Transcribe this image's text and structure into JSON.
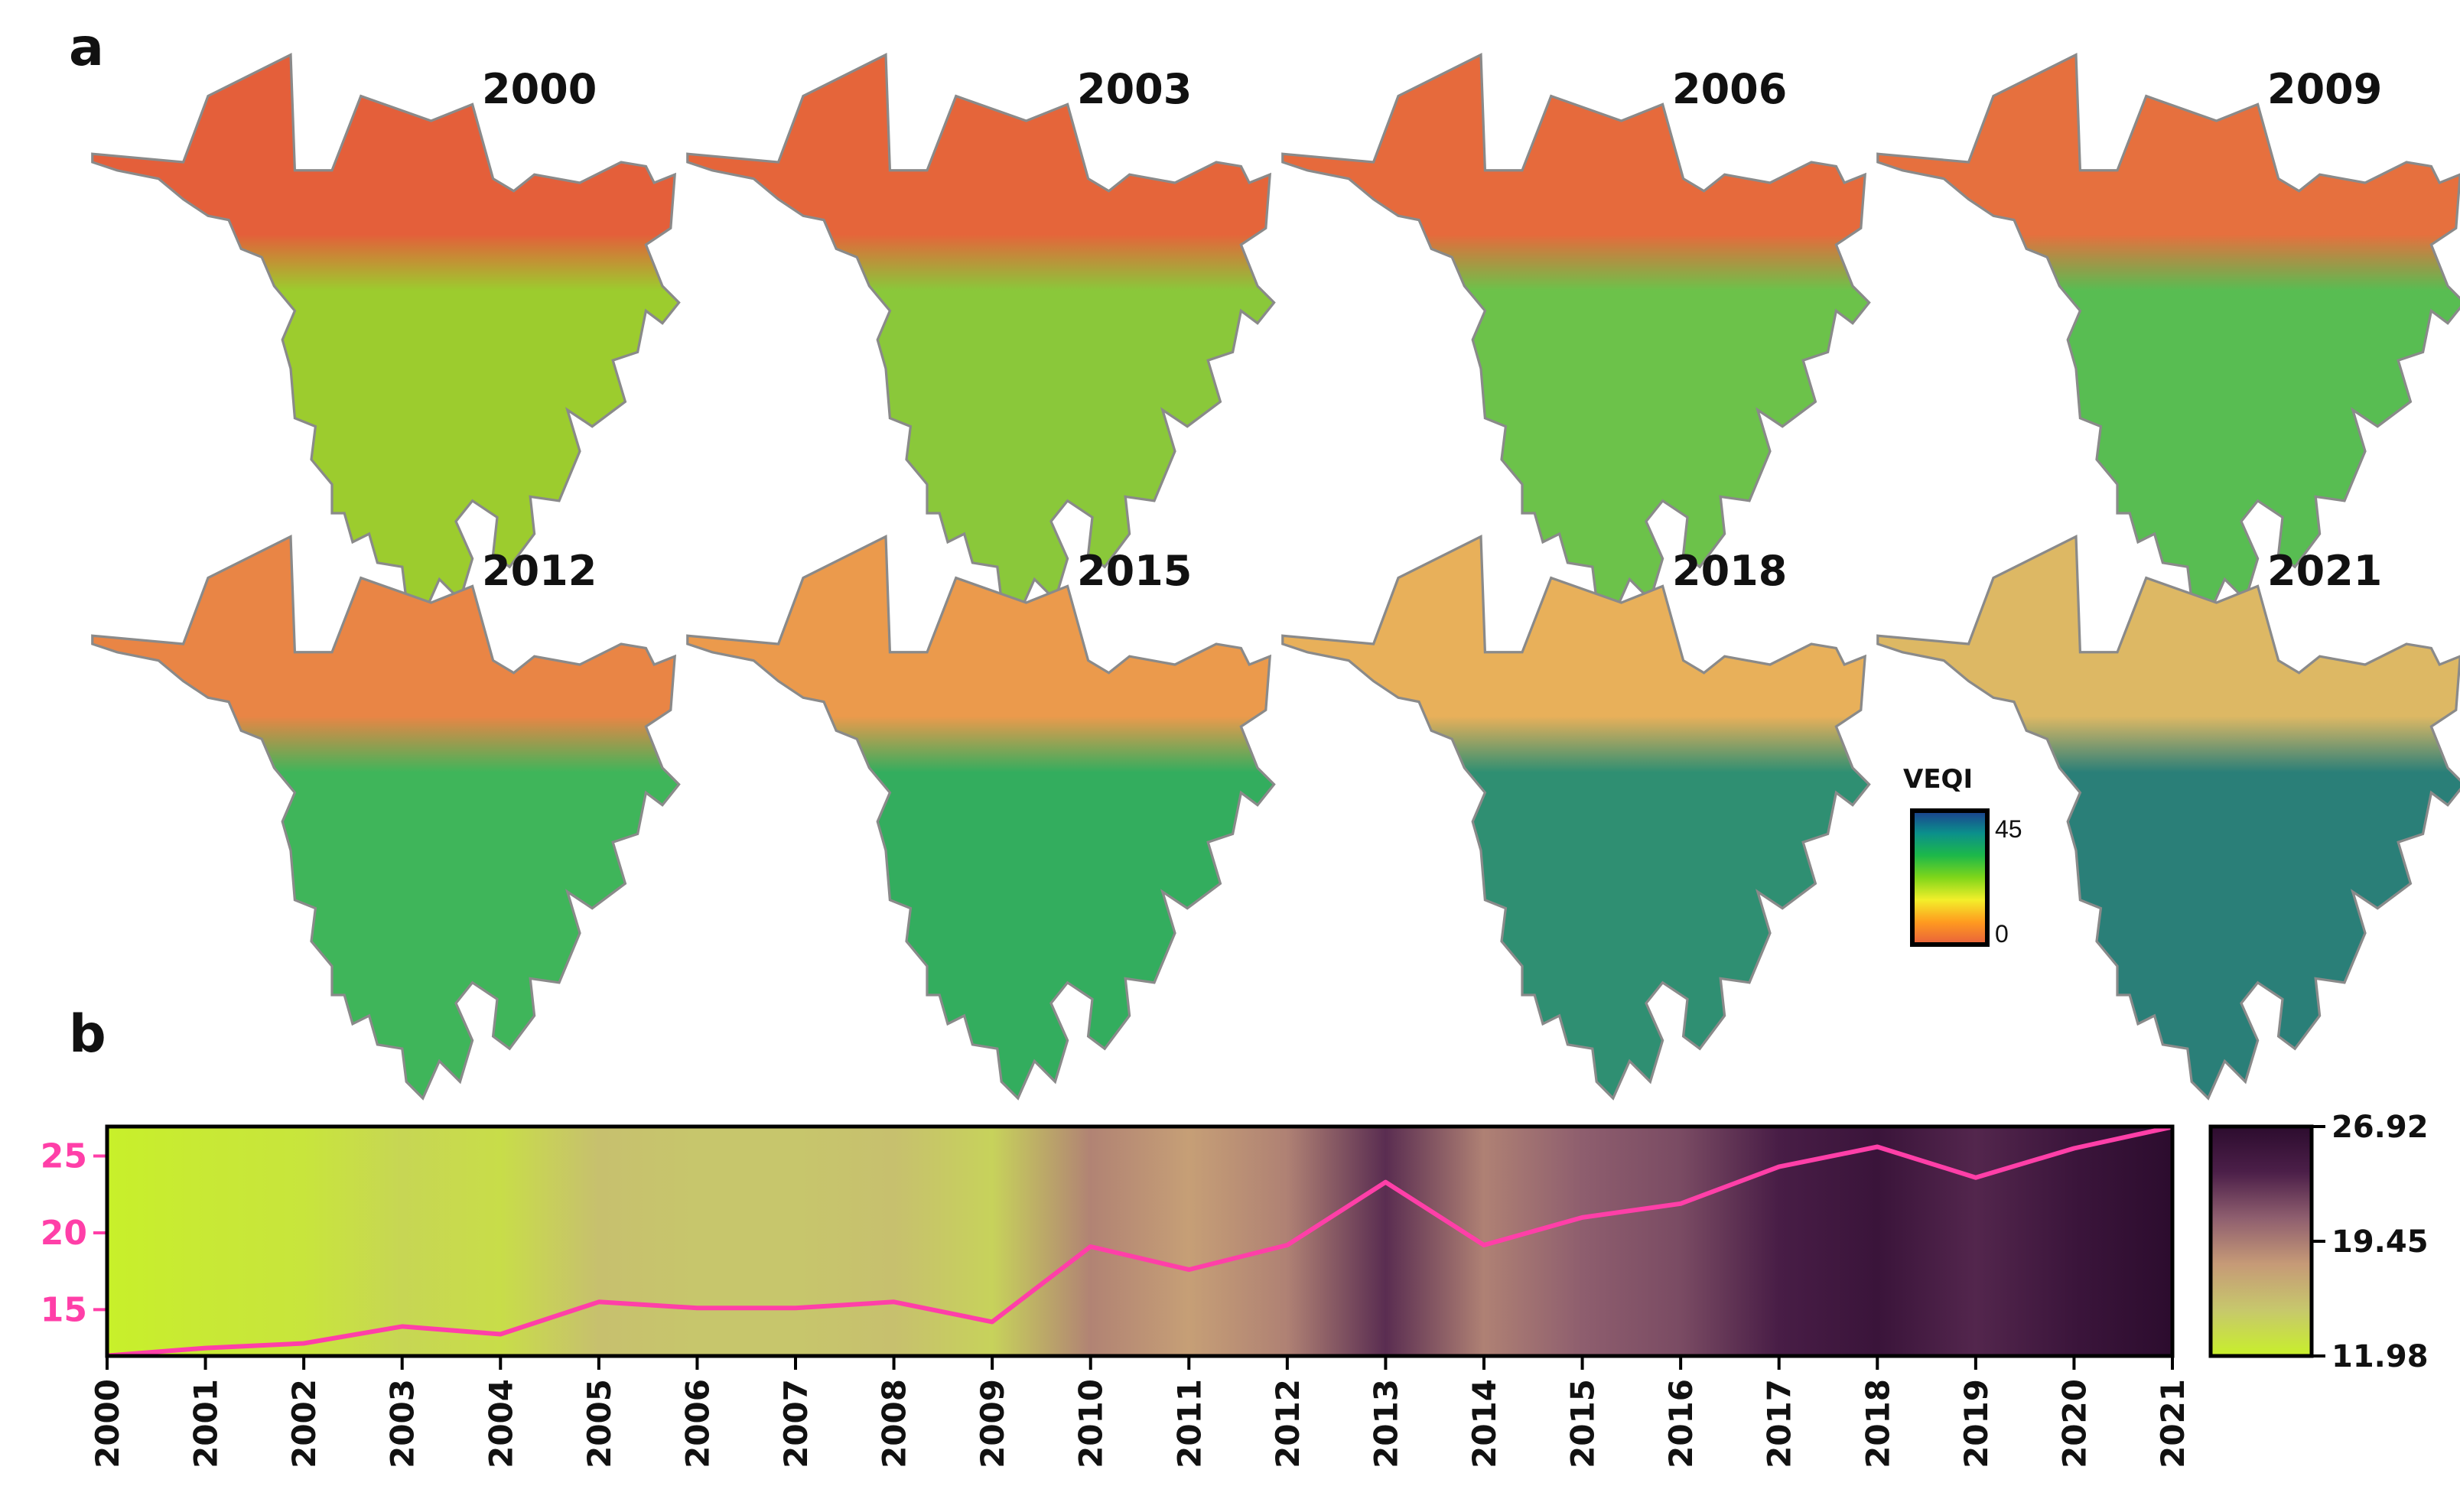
{
  "panel_a": {
    "label": "a",
    "map_years": [
      "2000",
      "2003",
      "2006",
      "2009",
      "2012",
      "2015",
      "2018",
      "2021"
    ],
    "legend": {
      "title": "VEQI",
      "max_label": "45",
      "min_label": "0",
      "colors": [
        "#1c3f8f",
        "#0b8f8c",
        "#1cb84a",
        "#7fd61a",
        "#f3ef2a",
        "#ff9a1f",
        "#e8603c"
      ]
    },
    "map_palette": {
      "north_zone_by_year": [
        "#e45f3a",
        "#e5653a",
        "#e66a3c",
        "#e6703e",
        "#e98545",
        "#eb9a4c",
        "#e8b05a",
        "#ddb864"
      ],
      "south_zone_by_year": [
        "#9ccc2e",
        "#8ac83a",
        "#6cc24a",
        "#58bd52",
        "#3fb55a",
        "#33ad5e",
        "#2f8f72",
        "#2a7f78"
      ]
    }
  },
  "panel_b": {
    "label": "b",
    "colorbar_labels": [
      "26.92",
      "19.45",
      "11.98"
    ]
  },
  "chart_data": {
    "type": "line",
    "title": "",
    "xlabel": "",
    "ylabel": "",
    "x": [
      "2000",
      "2001",
      "2002",
      "2003",
      "2004",
      "2005",
      "2006",
      "2007",
      "2008",
      "2009",
      "2010",
      "2011",
      "2012",
      "2013",
      "2014",
      "2015",
      "2016",
      "2017",
      "2018",
      "2019",
      "2020",
      "2021"
    ],
    "y_tick_labels": [
      "25",
      "20",
      "15"
    ],
    "ylim": [
      11.98,
      26.92
    ],
    "series": [
      {
        "name": "VEQI",
        "color": "#ff3fa8",
        "values": [
          12.0,
          12.5,
          12.8,
          13.9,
          13.4,
          15.5,
          15.1,
          15.1,
          15.5,
          14.2,
          19.1,
          17.6,
          19.2,
          23.3,
          19.2,
          21.0,
          21.9,
          24.3,
          25.6,
          23.6,
          25.5,
          26.9
        ]
      }
    ],
    "background_heatmap": {
      "colormap": [
        "#c8f02a",
        "#c7c86c",
        "#c69a77",
        "#8f5f6f",
        "#4c1f49",
        "#2c0c2e"
      ],
      "vmin": 11.98,
      "vmax": 26.92
    },
    "colorbar_ticks": [
      26.92,
      19.45,
      11.98
    ]
  }
}
